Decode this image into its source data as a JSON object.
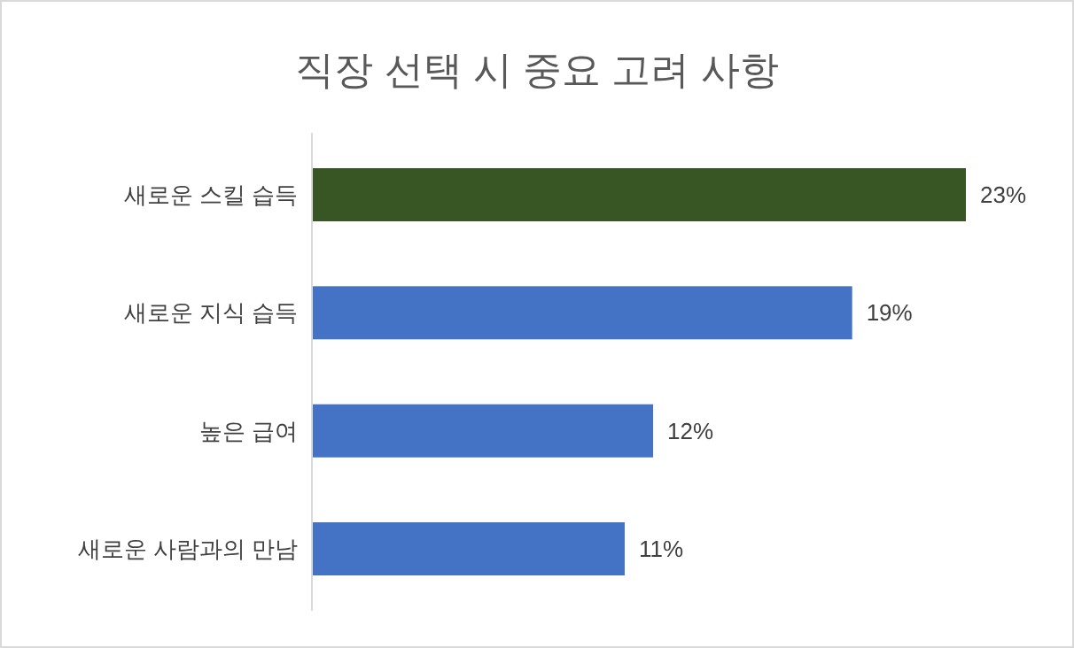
{
  "chart_data": {
    "type": "bar",
    "orientation": "horizontal",
    "title": "직장 선택 시 중요 고려 사항",
    "categories": [
      "새로운 스킬 습득",
      "새로운 지식 습득",
      "높은 급여",
      "새로운 사람과의 만남"
    ],
    "values": [
      23,
      19,
      12,
      11
    ],
    "colors": [
      "#375623",
      "#4472c4",
      "#4472c4",
      "#4472c4"
    ],
    "value_labels": [
      "23%",
      "19%",
      "12%",
      "11%"
    ],
    "tick_labels": "y"
  }
}
